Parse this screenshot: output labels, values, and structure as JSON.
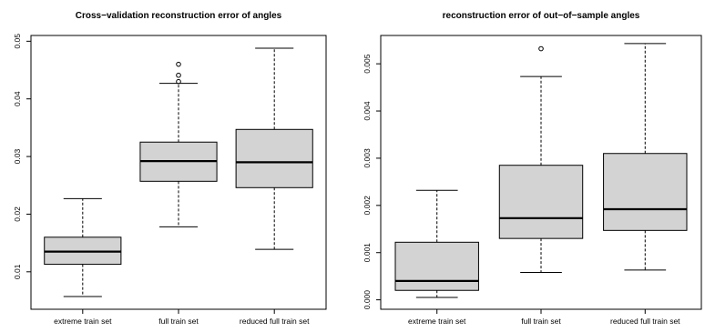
{
  "chart_data": [
    {
      "type": "boxplot",
      "title": "Cross−validation reconstruction error of angles",
      "categories": [
        "extreme train set",
        "full train set",
        "reduced full train set"
      ],
      "ylim": [
        0.0035,
        0.051
      ],
      "yticks": [
        0.01,
        0.02,
        0.03,
        0.04,
        0.05
      ],
      "ytick_labels": [
        "0.01",
        "0.02",
        "0.03",
        "0.04",
        "0.05"
      ],
      "boxes": [
        {
          "whisker_low": 0.0057,
          "q1": 0.0113,
          "median": 0.0135,
          "q3": 0.016,
          "whisker_high": 0.0227,
          "outliers": []
        },
        {
          "whisker_low": 0.0178,
          "q1": 0.0257,
          "median": 0.0292,
          "q3": 0.0325,
          "whisker_high": 0.0427,
          "outliers": [
            0.043,
            0.0441,
            0.046
          ]
        },
        {
          "whisker_low": 0.0139,
          "q1": 0.0246,
          "median": 0.029,
          "q3": 0.0347,
          "whisker_high": 0.0488,
          "outliers": []
        }
      ]
    },
    {
      "type": "boxplot",
      "title": "reconstruction error of out−of−sample angles",
      "categories": [
        "extreme train set",
        "full train set",
        "reduced full train set"
      ],
      "ylim": [
        -0.0002,
        0.0056
      ],
      "yticks": [
        0.0,
        0.001,
        0.002,
        0.003,
        0.004,
        0.005
      ],
      "ytick_labels": [
        "0.000",
        "0.001",
        "0.002",
        "0.003",
        "0.004",
        "0.005"
      ],
      "boxes": [
        {
          "whisker_low": 5e-05,
          "q1": 0.0002,
          "median": 0.0004,
          "q3": 0.00122,
          "whisker_high": 0.00232,
          "outliers": []
        },
        {
          "whisker_low": 0.00058,
          "q1": 0.0013,
          "median": 0.00173,
          "q3": 0.00285,
          "whisker_high": 0.00473,
          "outliers": [
            0.00532
          ]
        },
        {
          "whisker_low": 0.00063,
          "q1": 0.00147,
          "median": 0.00192,
          "q3": 0.0031,
          "whisker_high": 0.00543,
          "outliers": []
        }
      ]
    }
  ]
}
